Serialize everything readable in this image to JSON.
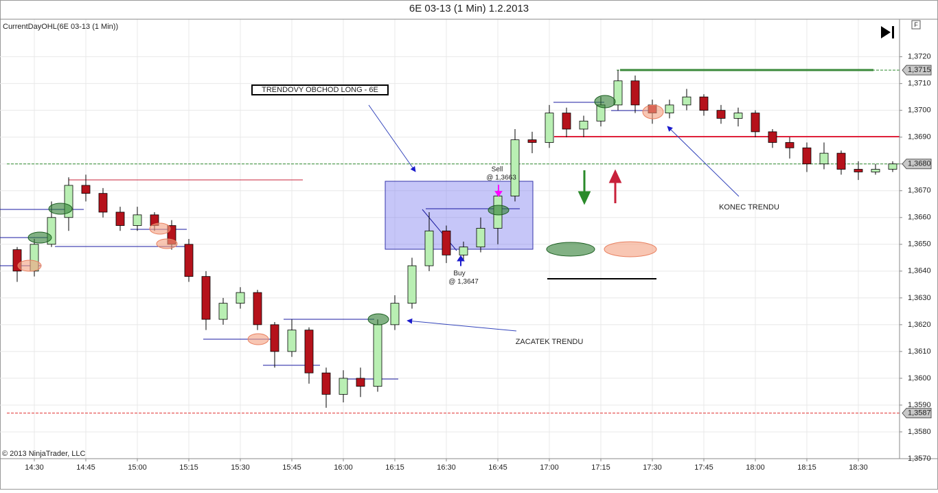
{
  "chart_data": {
    "type": "candlestick",
    "title": "6E 03-13 (1 Min)  1.2.2013",
    "indicator_label": "CurrentDayOHL(6E 03-13 (1 Min))",
    "copyright": "© 2013 NinjaTrader, LLC",
    "panel_tag": "F",
    "up_color": "#b9efb3",
    "down_color": "#b5121b",
    "grid": true,
    "xlim": [
      "14:20",
      "18:42"
    ],
    "xticks": [
      "14:30",
      "14:45",
      "15:00",
      "15:15",
      "15:30",
      "15:45",
      "16:00",
      "16:15",
      "16:30",
      "16:45",
      "17:00",
      "17:15",
      "17:30",
      "17:45",
      "18:00",
      "18:15",
      "18:30"
    ],
    "ylim": [
      1.357,
      1.3734
    ],
    "yticks": [
      {
        "value": 1.372,
        "label": "1,3720"
      },
      {
        "value": 1.371,
        "label": "1,3710"
      },
      {
        "value": 1.37,
        "label": "1,3700"
      },
      {
        "value": 1.369,
        "label": "1,3690"
      },
      {
        "value": 1.368,
        "label": "1,3680"
      },
      {
        "value": 1.367,
        "label": "1,3670"
      },
      {
        "value": 1.366,
        "label": "1,3660"
      },
      {
        "value": 1.365,
        "label": "1,3650"
      },
      {
        "value": 1.364,
        "label": "1,3640"
      },
      {
        "value": 1.363,
        "label": "1,3630"
      },
      {
        "value": 1.362,
        "label": "1,3620"
      },
      {
        "value": 1.361,
        "label": "1,3610"
      },
      {
        "value": 1.36,
        "label": "1,3600"
      },
      {
        "value": 1.359,
        "label": "1,3590"
      },
      {
        "value": 1.358,
        "label": "1,3580"
      },
      {
        "value": 1.357,
        "label": "1,3570"
      }
    ],
    "x": [
      "14:25",
      "14:30",
      "14:35",
      "14:40",
      "14:45",
      "14:50",
      "14:55",
      "15:00",
      "15:05",
      "15:10",
      "15:15",
      "15:20",
      "15:25",
      "15:30",
      "15:35",
      "15:40",
      "15:45",
      "15:50",
      "15:55",
      "16:00",
      "16:05",
      "16:10",
      "16:15",
      "16:20",
      "16:25",
      "16:30",
      "16:35",
      "16:40",
      "16:45",
      "16:50",
      "16:55",
      "17:00",
      "17:05",
      "17:10",
      "17:15",
      "17:20",
      "17:25",
      "17:30",
      "17:35",
      "17:40",
      "17:45",
      "17:50",
      "17:55",
      "18:00",
      "18:05",
      "18:10",
      "18:15",
      "18:20",
      "18:25",
      "18:30",
      "18:35",
      "18:40"
    ],
    "open": [
      1.3648,
      1.364,
      1.365,
      1.366,
      1.3672,
      1.3669,
      1.3662,
      1.3657,
      1.3661,
      1.3657,
      1.365,
      1.3638,
      1.3622,
      1.3628,
      1.3632,
      1.362,
      1.361,
      1.3618,
      1.3602,
      1.3594,
      1.36,
      1.3597,
      1.362,
      1.3628,
      1.3642,
      1.3655,
      1.3646,
      1.3649,
      1.3656,
      1.3668,
      1.3689,
      1.3688,
      1.3699,
      1.3693,
      1.3696,
      1.3702,
      1.3711,
      1.3702,
      1.3699,
      1.3702,
      1.3705,
      1.37,
      1.3697,
      1.3699,
      1.3692,
      1.3688,
      1.3686,
      1.368,
      1.3684,
      1.3678,
      1.3677,
      1.3678
    ],
    "high": [
      1.3649,
      1.3652,
      1.3666,
      1.3675,
      1.3676,
      1.3671,
      1.3664,
      1.3664,
      1.3662,
      1.3659,
      1.3652,
      1.364,
      1.363,
      1.3634,
      1.3633,
      1.3621,
      1.3622,
      1.3619,
      1.3604,
      1.3603,
      1.3604,
      1.3622,
      1.3631,
      1.3645,
      1.3662,
      1.3657,
      1.3651,
      1.366,
      1.367,
      1.3693,
      1.3692,
      1.3702,
      1.3701,
      1.3698,
      1.3705,
      1.3715,
      1.3713,
      1.3704,
      1.3704,
      1.3708,
      1.3706,
      1.3702,
      1.3701,
      1.37,
      1.3693,
      1.369,
      1.3688,
      1.3688,
      1.3685,
      1.3681,
      1.368,
      1.3681
    ],
    "low": [
      1.3636,
      1.3638,
      1.3649,
      1.3655,
      1.3666,
      1.366,
      1.3655,
      1.3655,
      1.3655,
      1.3648,
      1.3636,
      1.3618,
      1.362,
      1.3626,
      1.3618,
      1.3604,
      1.3608,
      1.3598,
      1.3589,
      1.3591,
      1.3593,
      1.3595,
      1.3618,
      1.3626,
      1.364,
      1.3643,
      1.3644,
      1.3647,
      1.365,
      1.3666,
      1.3684,
      1.3686,
      1.369,
      1.369,
      1.3694,
      1.37,
      1.3699,
      1.3695,
      1.3697,
      1.37,
      1.3698,
      1.3695,
      1.3694,
      1.369,
      1.3686,
      1.3682,
      1.3677,
      1.3678,
      1.3676,
      1.3674,
      1.3676,
      1.3677
    ],
    "close": [
      1.364,
      1.365,
      1.366,
      1.3672,
      1.3669,
      1.3662,
      1.3657,
      1.3661,
      1.3657,
      1.365,
      1.3638,
      1.3622,
      1.3628,
      1.3632,
      1.362,
      1.361,
      1.3618,
      1.3602,
      1.3594,
      1.36,
      1.3597,
      1.362,
      1.3628,
      1.3642,
      1.3655,
      1.3646,
      1.3649,
      1.3656,
      1.3668,
      1.3689,
      1.3688,
      1.3699,
      1.3693,
      1.3696,
      1.3702,
      1.3711,
      1.3702,
      1.3699,
      1.3702,
      1.3705,
      1.37,
      1.3697,
      1.3699,
      1.3692,
      1.3688,
      1.3686,
      1.368,
      1.3684,
      1.3678,
      1.3677,
      1.3678,
      1.368
    ],
    "levels": [
      {
        "value": 1.3715,
        "label": "1,3715",
        "color": "#2e8b2e"
      },
      {
        "value": 1.368,
        "label": "1,3680",
        "color": "#2e8b2e"
      },
      {
        "value": 1.3587,
        "label": "1,3587",
        "color": "#e03030"
      }
    ],
    "trades": [
      {
        "action": "Sell",
        "price": {
          "value": 1.3663,
          "label": "@ 1,3663"
        },
        "color": "#ff00ff"
      },
      {
        "action": "Buy",
        "price": {
          "value": 1.3647,
          "label": "@ 1,3647"
        },
        "color": "#1a1acc"
      }
    ],
    "notes": [
      "TRENDOVY OBCHOD LONG - 6E",
      "ZACATEK TRENDU",
      "KONEC TRENDU"
    ]
  }
}
